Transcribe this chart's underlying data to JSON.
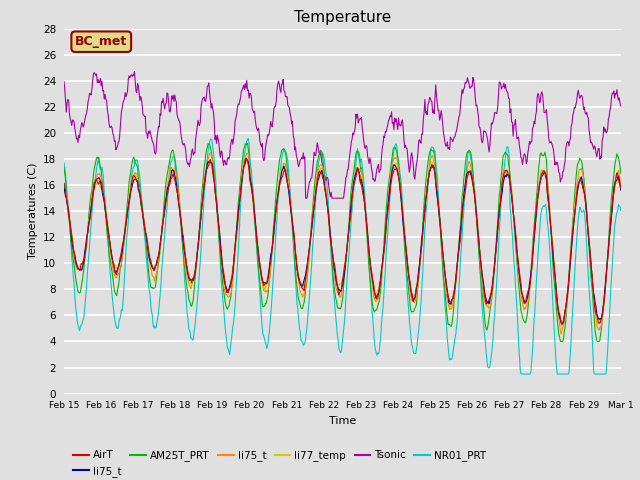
{
  "title": "Temperature",
  "ylabel": "Temperatures (C)",
  "xlabel": "Time",
  "ylim": [
    0,
    28
  ],
  "background_color": "#e0e0e0",
  "plot_bg_color": "#e0e0e0",
  "grid_color": "white",
  "series": {
    "AirT": {
      "color": "#dd0000",
      "lw": 0.8
    },
    "li75_blue": {
      "color": "#0000bb",
      "lw": 0.8
    },
    "AM25T_PRT": {
      "color": "#00bb00",
      "lw": 0.8
    },
    "li75_orange": {
      "color": "#ff8800",
      "lw": 0.8
    },
    "li77_temp": {
      "color": "#cccc00",
      "lw": 0.8
    },
    "Tsonic": {
      "color": "#aa00aa",
      "lw": 0.8
    },
    "NR01_PRT": {
      "color": "#00cccc",
      "lw": 0.8
    }
  },
  "legend_labels": [
    "AirT",
    "li75_t",
    "AM25T_PRT",
    "li75_t",
    "li77_temp",
    "Tsonic",
    "NR01_PRT"
  ],
  "legend_colors": [
    "#dd0000",
    "#0000bb",
    "#00bb00",
    "#ff8800",
    "#cccc00",
    "#aa00aa",
    "#00cccc"
  ],
  "annotation_text": "BC_met",
  "annotation_color": "#990000",
  "annotation_bg": "#dddd88",
  "xtick_labels": [
    "Feb 15",
    "Feb 16",
    "Feb 17",
    "Feb 18",
    "Feb 19",
    "Feb 20",
    "Feb 21",
    "Feb 22",
    "Feb 23",
    "Feb 24",
    "Feb 25",
    "Feb 26",
    "Feb 27",
    "Feb 28",
    "Feb 29",
    "Mar 1"
  ],
  "ytick_values": [
    0,
    2,
    4,
    6,
    8,
    10,
    12,
    14,
    16,
    18,
    20,
    22,
    24,
    26,
    28
  ]
}
